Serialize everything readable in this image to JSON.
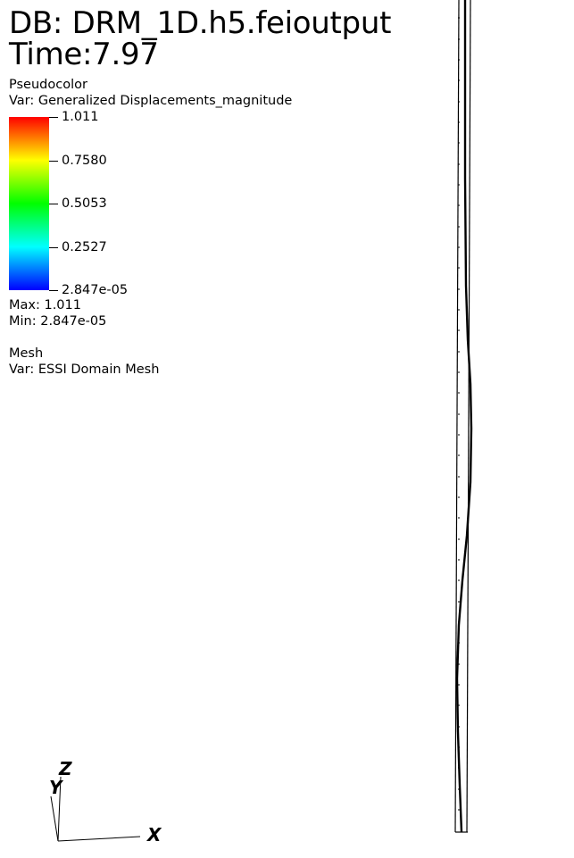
{
  "header": {
    "db_title": "DB: DRM_1D.h5.feioutput",
    "time": "Time:7.97"
  },
  "pseudocolor_plot": {
    "name": "Pseudocolor",
    "var": "Var: Generalized Displacements_magnitude",
    "ticks": [
      "1.011",
      "0.7580",
      "0.5053",
      "0.2527",
      "2.847e-05"
    ],
    "max": "Max:  1.011",
    "min": "Min:  2.847e-05",
    "colors": [
      "#ff0000",
      "#ffff00",
      "#00ff00",
      "#00ffff",
      "#0000ff"
    ]
  },
  "mesh_plot": {
    "name": "Mesh",
    "var": "Var: ESSI Domain Mesh"
  },
  "triad": {
    "z": "Z",
    "y": "Y",
    "x": "X"
  }
}
